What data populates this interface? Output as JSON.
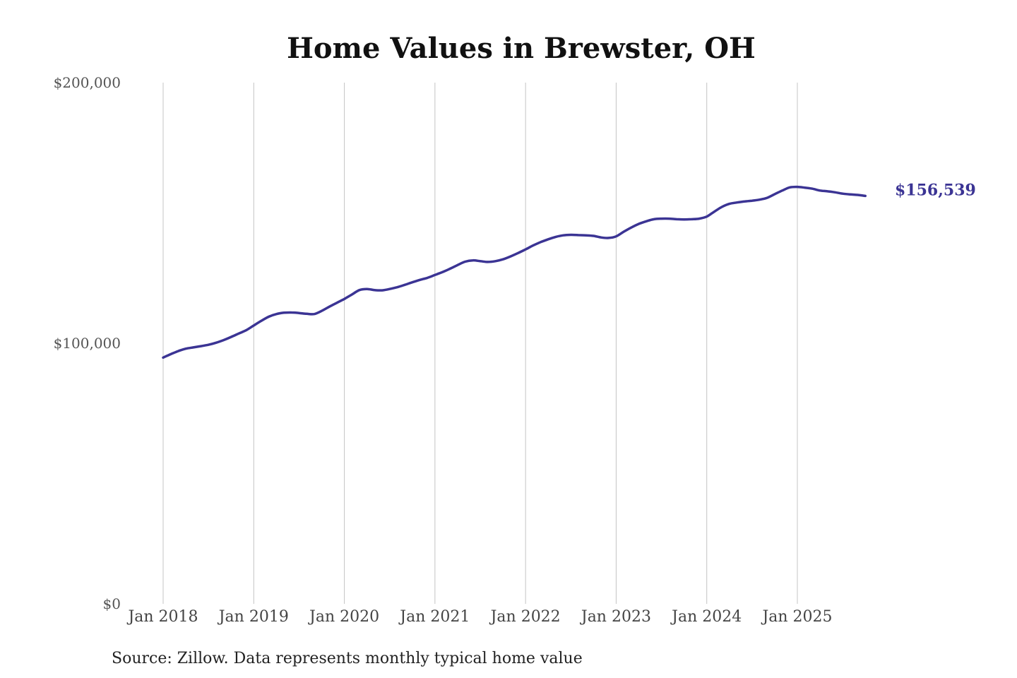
{
  "chart_data": {
    "type": "line",
    "title": "Home Values in Brewster, OH",
    "xlabel": "",
    "ylabel": "",
    "ylim": [
      0,
      200000
    ],
    "ytick_values": [
      0,
      100000,
      200000
    ],
    "ytick_labels": [
      "$0",
      "$100,000",
      "$200,000"
    ],
    "xlim": [
      "2018-01",
      "2025-12"
    ],
    "xtick_labels": [
      "Jan 2018",
      "Jan 2019",
      "Jan 2020",
      "Jan 2021",
      "Jan 2022",
      "Jan 2023",
      "Jan 2024",
      "Jan 2025"
    ],
    "grid": "vertical",
    "legend": "none",
    "series": [
      {
        "color": "#3b3494",
        "end_label": "$156,539",
        "points": [
          [
            "2018-01",
            94500
          ],
          [
            "2018-02",
            95800
          ],
          [
            "2018-03",
            97000
          ],
          [
            "2018-04",
            97900
          ],
          [
            "2018-05",
            98400
          ],
          [
            "2018-06",
            98900
          ],
          [
            "2018-07",
            99400
          ],
          [
            "2018-08",
            100200
          ],
          [
            "2018-09",
            101200
          ],
          [
            "2018-10",
            102400
          ],
          [
            "2018-11",
            103700
          ],
          [
            "2018-12",
            105000
          ],
          [
            "2019-01",
            106800
          ],
          [
            "2019-02",
            108600
          ],
          [
            "2019-03",
            110200
          ],
          [
            "2019-04",
            111200
          ],
          [
            "2019-05",
            111700
          ],
          [
            "2019-06",
            111800
          ],
          [
            "2019-07",
            111600
          ],
          [
            "2019-08",
            111300
          ],
          [
            "2019-09",
            111200
          ],
          [
            "2019-10",
            112400
          ],
          [
            "2019-11",
            114000
          ],
          [
            "2019-12",
            115500
          ],
          [
            "2020-01",
            117000
          ],
          [
            "2020-02",
            118700
          ],
          [
            "2020-03",
            120400
          ],
          [
            "2020-04",
            120800
          ],
          [
            "2020-05",
            120400
          ],
          [
            "2020-06",
            120300
          ],
          [
            "2020-07",
            120800
          ],
          [
            "2020-08",
            121500
          ],
          [
            "2020-09",
            122400
          ],
          [
            "2020-10",
            123400
          ],
          [
            "2020-11",
            124300
          ],
          [
            "2020-12",
            125100
          ],
          [
            "2021-01",
            126200
          ],
          [
            "2021-02",
            127300
          ],
          [
            "2021-03",
            128600
          ],
          [
            "2021-04",
            130000
          ],
          [
            "2021-05",
            131300
          ],
          [
            "2021-06",
            131800
          ],
          [
            "2021-07",
            131500
          ],
          [
            "2021-08",
            131200
          ],
          [
            "2021-09",
            131500
          ],
          [
            "2021-10",
            132200
          ],
          [
            "2021-11",
            133300
          ],
          [
            "2021-12",
            134600
          ],
          [
            "2022-01",
            136000
          ],
          [
            "2022-02",
            137500
          ],
          [
            "2022-03",
            138800
          ],
          [
            "2022-04",
            139900
          ],
          [
            "2022-05",
            140800
          ],
          [
            "2022-06",
            141400
          ],
          [
            "2022-07",
            141600
          ],
          [
            "2022-08",
            141500
          ],
          [
            "2022-09",
            141400
          ],
          [
            "2022-10",
            141200
          ],
          [
            "2022-11",
            140600
          ],
          [
            "2022-12",
            140400
          ],
          [
            "2023-01",
            141000
          ],
          [
            "2023-02",
            142800
          ],
          [
            "2023-03",
            144400
          ],
          [
            "2023-04",
            145800
          ],
          [
            "2023-05",
            146800
          ],
          [
            "2023-06",
            147600
          ],
          [
            "2023-07",
            147800
          ],
          [
            "2023-08",
            147800
          ],
          [
            "2023-09",
            147600
          ],
          [
            "2023-10",
            147500
          ],
          [
            "2023-11",
            147600
          ],
          [
            "2023-12",
            147800
          ],
          [
            "2024-01",
            148600
          ],
          [
            "2024-02",
            150500
          ],
          [
            "2024-03",
            152300
          ],
          [
            "2024-04",
            153500
          ],
          [
            "2024-05",
            154000
          ],
          [
            "2024-06",
            154400
          ],
          [
            "2024-07",
            154700
          ],
          [
            "2024-08",
            155100
          ],
          [
            "2024-09",
            155800
          ],
          [
            "2024-10",
            157200
          ],
          [
            "2024-11",
            158600
          ],
          [
            "2024-12",
            159800
          ],
          [
            "2025-01",
            160000
          ],
          [
            "2025-02",
            159700
          ],
          [
            "2025-03",
            159300
          ],
          [
            "2025-04",
            158600
          ],
          [
            "2025-05",
            158300
          ],
          [
            "2025-06",
            157900
          ],
          [
            "2025-07",
            157400
          ],
          [
            "2025-08",
            157100
          ],
          [
            "2025-09",
            156900
          ],
          [
            "2025-10",
            156539
          ]
        ]
      }
    ],
    "source_note": "Source: Zillow. Data represents monthly typical home value"
  }
}
